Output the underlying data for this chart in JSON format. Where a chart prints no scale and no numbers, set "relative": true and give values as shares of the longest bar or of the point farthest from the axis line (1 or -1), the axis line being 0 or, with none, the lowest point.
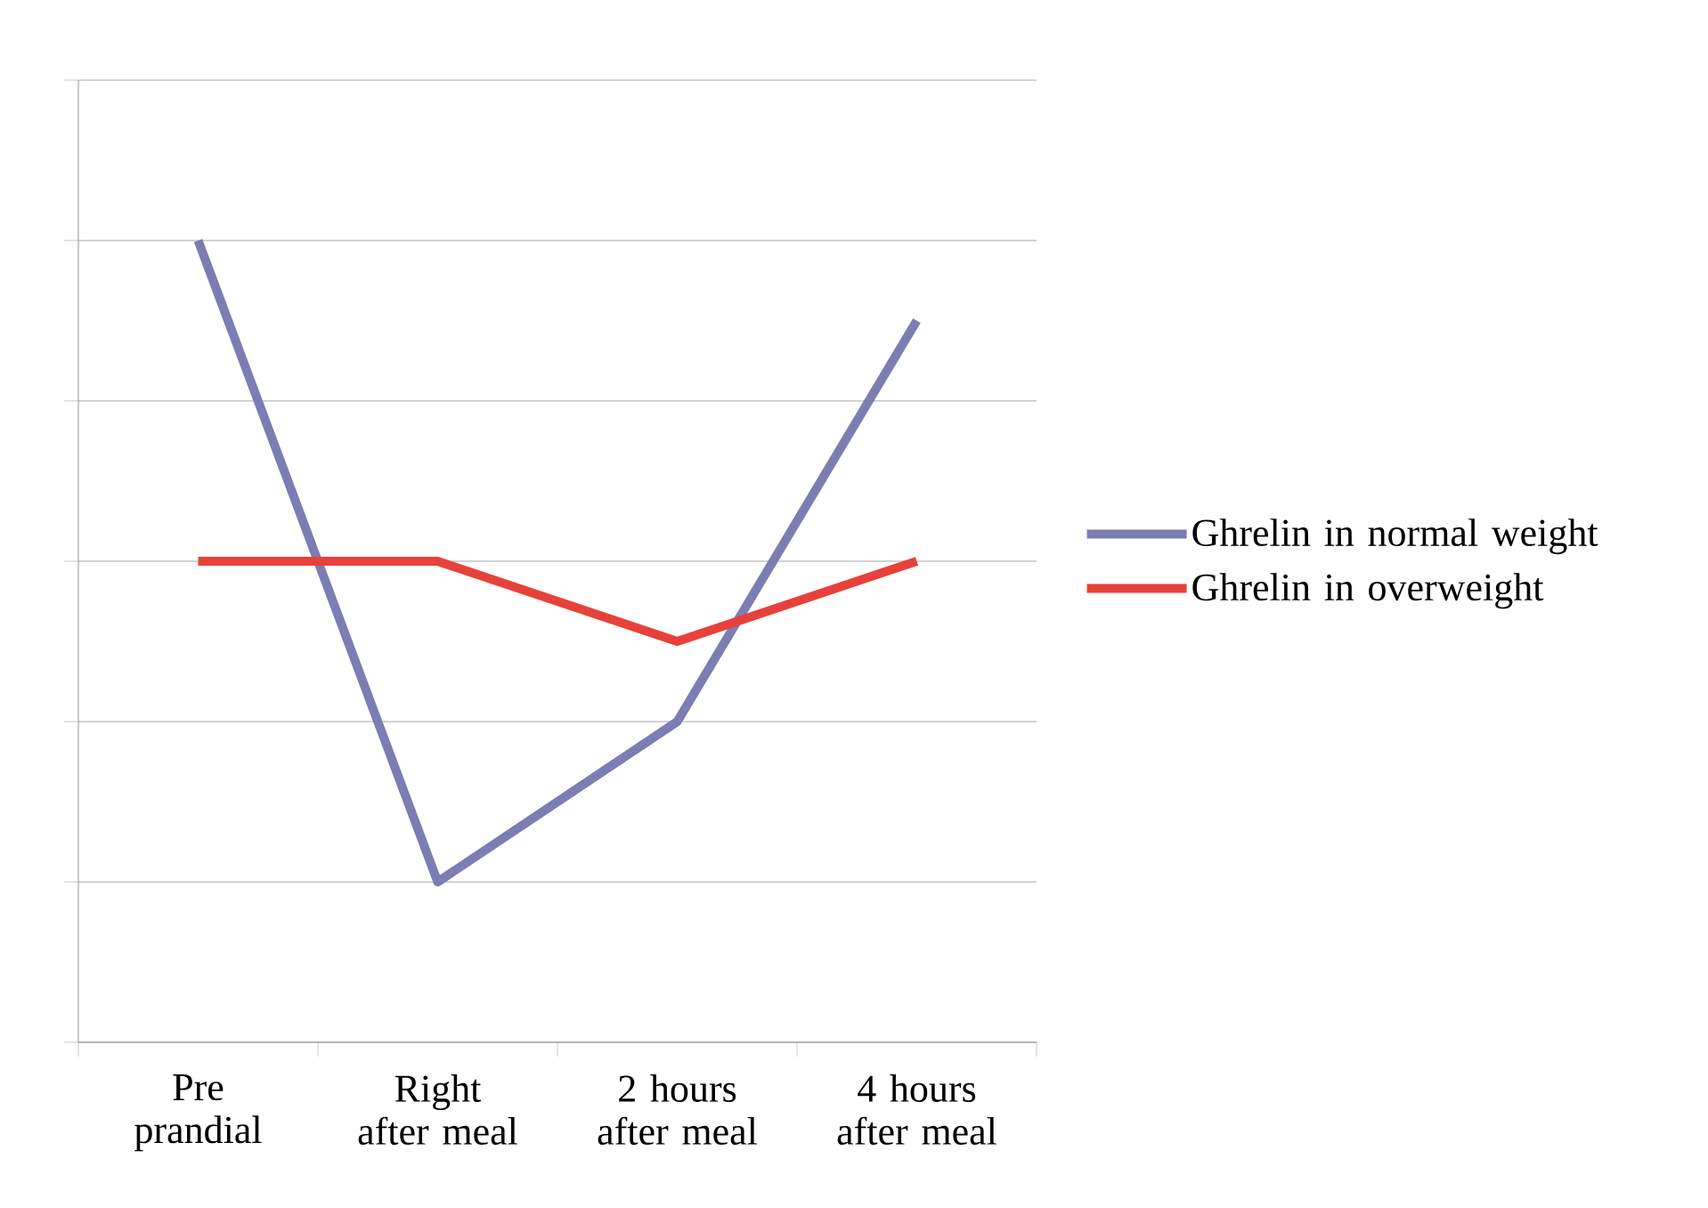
{
  "chart_data": {
    "type": "line",
    "relative": true,
    "categories": [
      "Pre prandial",
      "Right after meal",
      "2 hours after meal",
      "4 hours after meal"
    ],
    "series": [
      {
        "name": "Ghrelin in normal weight",
        "color": "#7b7db3",
        "values": [
          1,
          0.2,
          0.4,
          0.9
        ]
      },
      {
        "name": "Ghrelin in overweight",
        "color": "#e8413b",
        "values": [
          0.6,
          0.6,
          0.5,
          0.6
        ]
      }
    ],
    "grid": "y",
    "legend": "right",
    "marker": "none",
    "line_style": "solid"
  }
}
